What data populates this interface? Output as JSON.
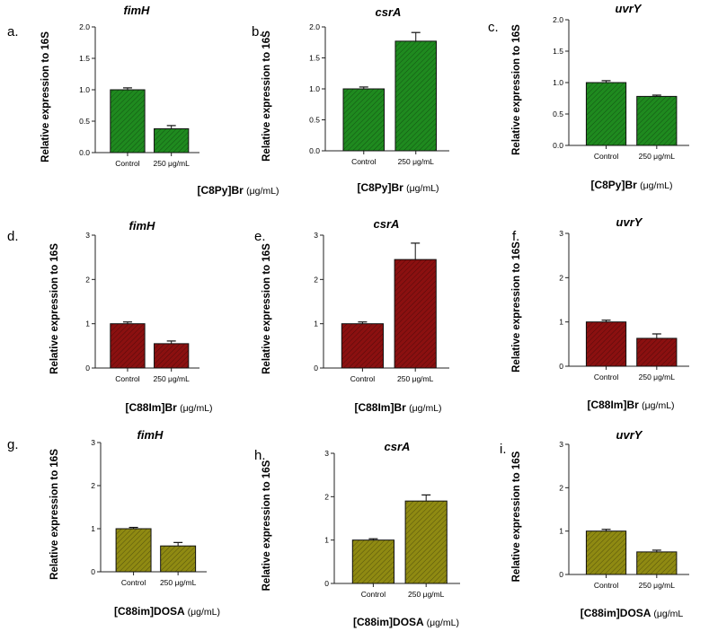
{
  "figure": {
    "row_colors": [
      "#1f8a1f",
      "#8b1010",
      "#8f8a12"
    ],
    "pattern_line_color": "#000000",
    "ylabel": "Relative expression to 16S",
    "categories": [
      "Control",
      "250 μg/mL"
    ]
  },
  "chart_data": [
    {
      "type": "bar",
      "panel": "a.",
      "title": "fimH",
      "compound": "[C8Py]Br",
      "unit": "(μg/mL)",
      "ylabel": "Relative expression to 16S",
      "categories": [
        "Control",
        "250 μg/mL"
      ],
      "values": [
        1.0,
        0.38
      ],
      "errors": [
        0.03,
        0.05
      ],
      "ylim": [
        0,
        2.0
      ],
      "yticks": [
        "0.0",
        "0.5",
        "1.0",
        "1.5",
        "2.0"
      ],
      "color": "#1f8a1f"
    },
    {
      "type": "bar",
      "panel": "b.",
      "title": "csrA",
      "compound": "[C8Py]Br",
      "unit": "(μg/mL)",
      "ylabel": "Relative expression to 16S",
      "categories": [
        "Control",
        "250 μg/mL"
      ],
      "values": [
        1.0,
        1.77
      ],
      "errors": [
        0.03,
        0.14
      ],
      "ylim": [
        0,
        2.0
      ],
      "yticks": [
        "0.0",
        "0.5",
        "1.0",
        "1.5",
        "2.0"
      ],
      "color": "#1f8a1f"
    },
    {
      "type": "bar",
      "panel": "c.",
      "title": "uvrY",
      "compound": "[C8Py]Br",
      "unit": "(μg/mL)",
      "ylabel": "Relative expression to 16S",
      "categories": [
        "Control",
        "250 μg/mL"
      ],
      "values": [
        1.0,
        0.78
      ],
      "errors": [
        0.03,
        0.02
      ],
      "ylim": [
        0,
        2.0
      ],
      "yticks": [
        "0.0",
        "0.5",
        "1.0",
        "1.5",
        "2.0"
      ],
      "color": "#1f8a1f"
    },
    {
      "type": "bar",
      "panel": "d.",
      "title": "fimH",
      "compound": "[C88Im]Br",
      "unit": "(μg/mL)",
      "ylabel": "Relative expression to 16S",
      "categories": [
        "Control",
        "250 μg/mL"
      ],
      "values": [
        1.0,
        0.55
      ],
      "errors": [
        0.04,
        0.06
      ],
      "ylim": [
        0,
        3
      ],
      "yticks": [
        "0",
        "1",
        "2",
        "3"
      ],
      "color": "#8b1010"
    },
    {
      "type": "bar",
      "panel": "e.",
      "title": "csrA",
      "compound": "[C88Im]Br",
      "unit": "(μg/mL)",
      "ylabel": "Relative expression to 16S",
      "categories": [
        "Control",
        "250 μg/mL"
      ],
      "values": [
        1.0,
        2.45
      ],
      "errors": [
        0.04,
        0.37
      ],
      "ylim": [
        0,
        3
      ],
      "yticks": [
        "0",
        "1",
        "2",
        "3"
      ],
      "color": "#8b1010"
    },
    {
      "type": "bar",
      "panel": "f.",
      "title": "uvrY",
      "compound": "[C88Im]Br",
      "unit": "(μg/mL)",
      "ylabel": "Relative expression to 16S",
      "categories": [
        "Control",
        "250 μg/mL"
      ],
      "values": [
        1.0,
        0.63
      ],
      "errors": [
        0.04,
        0.1
      ],
      "ylim": [
        0,
        3
      ],
      "yticks": [
        "0",
        "1",
        "2",
        "3"
      ],
      "color": "#8b1010"
    },
    {
      "type": "bar",
      "panel": "g.",
      "title": "fimH",
      "compound": "[C88im]DOSA",
      "unit": "(μg/mL)",
      "ylabel": "Relative expression to 16S",
      "categories": [
        "Control",
        "250 μg/mL"
      ],
      "values": [
        1.0,
        0.6
      ],
      "errors": [
        0.03,
        0.08
      ],
      "ylim": [
        0,
        3
      ],
      "yticks": [
        "0",
        "1",
        "2",
        "3"
      ],
      "color": "#8f8a12"
    },
    {
      "type": "bar",
      "panel": "h.",
      "title": "csrA",
      "compound": "[C88im]DOSA",
      "unit": "(μg/mL)",
      "ylabel": "Relative expression to 16S",
      "categories": [
        "Control",
        "250 μg/mL"
      ],
      "values": [
        1.0,
        1.9
      ],
      "errors": [
        0.03,
        0.14
      ],
      "ylim": [
        0,
        3
      ],
      "yticks": [
        "0",
        "1",
        "2",
        "3"
      ],
      "color": "#8f8a12"
    },
    {
      "type": "bar",
      "panel": "i.",
      "title": "uvrY",
      "compound": "[C88im]DOSA",
      "unit": "(μg/mL",
      "ylabel": "Relative expression to 16S",
      "categories": [
        "Control",
        "250 μg/mL"
      ],
      "values": [
        1.0,
        0.52
      ],
      "errors": [
        0.04,
        0.04
      ],
      "ylim": [
        0,
        3
      ],
      "yticks": [
        "0",
        "1",
        "2",
        "3"
      ],
      "color": "#8f8a12"
    }
  ]
}
